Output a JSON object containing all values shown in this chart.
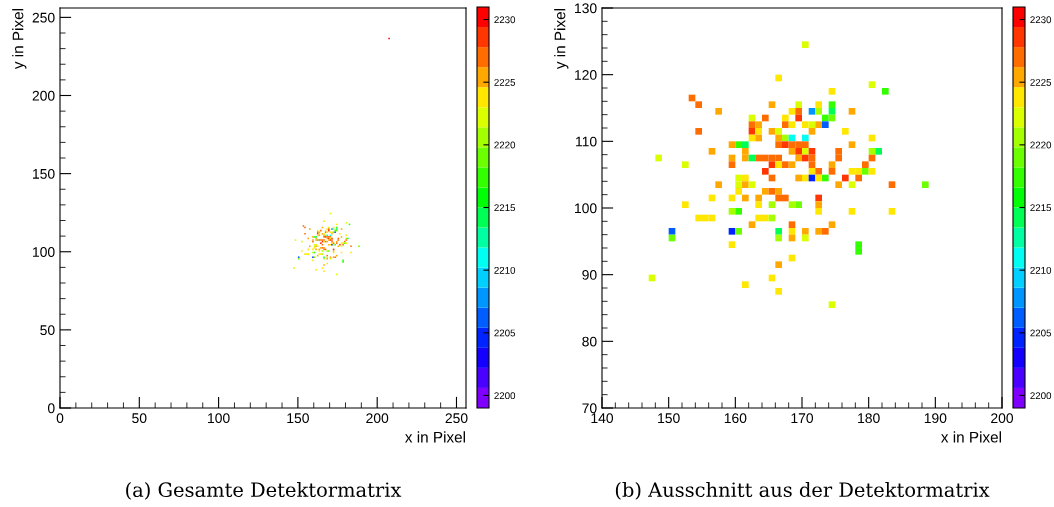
{
  "chart_data": [
    {
      "type": "scatter",
      "title": "(a) Gesamte Detektormatrix",
      "xlabel": "x in Pixel",
      "ylabel": "y in Pixel",
      "marker": "square",
      "grid": false,
      "xlim": [
        0,
        256
      ],
      "ylim": [
        0,
        256
      ],
      "xticks": [
        0,
        50,
        100,
        150,
        200,
        250
      ],
      "yticks": [
        0,
        50,
        100,
        150,
        200,
        250
      ],
      "clim": [
        2199,
        2231
      ],
      "cticks": [
        2200,
        2205,
        2210,
        2215,
        2220,
        2225,
        2230
      ],
      "x": [
        170.5,
        166.5,
        180.5,
        174.5,
        182.5,
        153.5,
        154.5,
        165.5,
        169.5,
        172.5,
        174.5,
        157.5,
        168.5,
        169.5,
        171.5,
        172.5,
        174.5,
        177.5,
        162.5,
        164.5,
        167.5,
        169.5,
        173.5,
        174.5,
        162.5,
        163.5,
        167.5,
        168.5,
        170.5,
        171.5,
        172.5,
        173.5,
        154.5,
        162.5,
        163.5,
        165.5,
        166.5,
        171.5,
        176.5,
        162.5,
        163.5,
        166.5,
        167.5,
        168.5,
        170.5,
        180.5,
        159.5,
        160.5,
        161.5,
        166.5,
        167.5,
        168.5,
        169.5,
        170.5,
        177.5,
        156.5,
        161.5,
        168.5,
        169.5,
        170.5,
        171.5,
        175.5,
        180.5,
        181.5,
        148.5,
        159.5,
        161.5,
        162.5,
        163.5,
        164.5,
        165.5,
        166.5,
        169.5,
        170.5,
        171.5,
        175.5,
        180.5,
        152.5,
        159.5,
        165.5,
        166.5,
        167.5,
        168.5,
        171.5,
        174.5,
        179.5,
        164.5,
        171.5,
        172.5,
        174.5,
        177.5,
        178.5,
        179.5,
        180.5,
        160.5,
        161.5,
        165.5,
        169.5,
        170.5,
        171.5,
        172.5,
        173.5,
        176.5,
        178.5,
        157.5,
        160.5,
        161.5,
        162.5,
        175.5,
        177.5,
        183.5,
        188.5,
        160.5,
        164.5,
        165.5,
        166.5,
        156.5,
        159.5,
        161.5,
        163.5,
        166.5,
        167.5,
        172.5,
        152.5,
        163.5,
        165.5,
        168.5,
        169.5,
        172.5,
        159.5,
        160.5,
        172.5,
        177.5,
        183.5,
        154.5,
        155.5,
        156.5,
        163.5,
        164.5,
        165.5,
        162.5,
        168.5,
        174.5,
        150.5,
        159.5,
        160.5,
        166.5,
        168.5,
        170.5,
        172.5,
        173.5,
        150.5,
        166.5,
        168.5,
        170.5,
        159.5,
        178.5,
        178.5,
        168.5,
        166.5,
        147.5,
        165.5,
        161.5,
        166.5,
        174.5,
        207.5
      ],
      "values": [
        124.5,
        119.5,
        118.5,
        117.5,
        117.5,
        116.5,
        115.5,
        115.5,
        115.5,
        115.5,
        115.5,
        114.5,
        114.5,
        114.5,
        114.5,
        114.5,
        114.5,
        114.5,
        113.5,
        113.5,
        113.5,
        113.5,
        113.5,
        113.5,
        112.5,
        112.5,
        112.5,
        112.5,
        112.5,
        112.5,
        112.5,
        112.5,
        111.5,
        111.5,
        111.5,
        111.5,
        111.5,
        111.5,
        111.5,
        110.5,
        110.5,
        110.5,
        110.5,
        110.5,
        110.5,
        110.5,
        109.5,
        109.5,
        109.5,
        109.5,
        109.5,
        109.5,
        109.5,
        109.5,
        109.5,
        108.5,
        108.5,
        108.5,
        108.5,
        108.5,
        108.5,
        108.5,
        108.5,
        108.5,
        107.5,
        107.5,
        107.5,
        107.5,
        107.5,
        107.5,
        107.5,
        107.5,
        107.5,
        107.5,
        107.5,
        107.5,
        107.5,
        106.5,
        106.5,
        106.5,
        106.5,
        106.5,
        106.5,
        106.5,
        106.5,
        106.5,
        105.5,
        105.5,
        105.5,
        105.5,
        105.5,
        105.5,
        105.5,
        105.5,
        104.5,
        104.5,
        104.5,
        104.5,
        104.5,
        104.5,
        104.5,
        104.5,
        104.5,
        104.5,
        103.5,
        103.5,
        103.5,
        103.5,
        103.5,
        103.5,
        103.5,
        103.5,
        102.5,
        102.5,
        102.5,
        102.5,
        101.5,
        101.5,
        101.5,
        101.5,
        101.5,
        101.5,
        101.5,
        100.5,
        100.5,
        100.5,
        100.5,
        100.5,
        100.5,
        99.5,
        99.5,
        99.5,
        99.5,
        99.5,
        98.5,
        98.5,
        98.5,
        98.5,
        98.5,
        98.5,
        97.5,
        97.5,
        97.5,
        96.5,
        96.5,
        96.5,
        96.5,
        96.5,
        96.5,
        96.5,
        96.5,
        95.5,
        95.5,
        95.5,
        95.5,
        94.5,
        94.5,
        93.5,
        92.5,
        91.5,
        89.5,
        89.5,
        88.5,
        87.5,
        85.5,
        236.5
      ],
      "cvalues": [
        2222.5,
        2224,
        2222.5,
        2224,
        2217,
        2227,
        2227,
        2225.5,
        2222.5,
        2224,
        2217,
        2225.5,
        2224,
        2227,
        2207,
        2221,
        2214,
        2225.5,
        2222.5,
        2227,
        2224,
        2228.5,
        2217,
        2219.5,
        2227,
        2225.5,
        2227,
        2224,
        2224,
        2222.5,
        2225.5,
        2206.5,
        2227,
        2228.5,
        2224,
        2225.5,
        2222.5,
        2225.5,
        2224,
        2224,
        2225.5,
        2225.5,
        2221,
        2211,
        2211,
        2224,
        2225.5,
        2217,
        2214,
        2227,
        2228.5,
        2227,
        2227,
        2227,
        2225.5,
        2225.5,
        2225.5,
        2225.5,
        2228.5,
        2222.5,
        2228.5,
        2227,
        2221,
        2214,
        2222.5,
        2225.5,
        2225.5,
        2214,
        2227,
        2227,
        2227,
        2227,
        2225.5,
        2228.5,
        2227,
        2227,
        2227,
        2222.5,
        2227,
        2228.5,
        2224,
        2227,
        2225.5,
        2227,
        2225.5,
        2227,
        2228.5,
        2224,
        2227,
        2227,
        2224,
        2224,
        2219.5,
        2224,
        2222.5,
        2224,
        2227,
        2225.5,
        2224,
        2204.5,
        2224,
        2217,
        2228.5,
        2227,
        2225.5,
        2222.5,
        2225.5,
        2222.5,
        2225.5,
        2222.5,
        2227,
        2219.5,
        2224,
        2225.5,
        2227,
        2225.5,
        2224,
        2224,
        2225.5,
        2225.5,
        2227,
        2227,
        2228.5,
        2224,
        2224,
        2221,
        2221,
        2219.5,
        2225.5,
        2221,
        2217,
        2224,
        2224,
        2224,
        2224,
        2224,
        2224,
        2224,
        2224,
        2221,
        2225.5,
        2227,
        2225.5,
        2206.5,
        2204.5,
        2219.5,
        2214,
        2224,
        2225.5,
        2225.5,
        2227,
        2219.5,
        2221,
        2225.5,
        2222.5,
        2224,
        2217,
        2217,
        2224,
        2225.5,
        2222.5,
        2224,
        2224,
        2224,
        2222.5,
        2230.5
      ]
    },
    {
      "type": "scatter",
      "title": "(b) Ausschnitt aus der Detektormatrix",
      "xlabel": "x in Pixel",
      "ylabel": "y in Pixel",
      "marker": "square",
      "grid": false,
      "xlim": [
        140,
        200
      ],
      "ylim": [
        70,
        130
      ],
      "xticks": [
        140,
        150,
        160,
        170,
        180,
        190,
        200
      ],
      "yticks": [
        70,
        80,
        90,
        100,
        110,
        120,
        130
      ],
      "clim": [
        2199,
        2231
      ],
      "cticks": [
        2200,
        2205,
        2210,
        2215,
        2220,
        2225,
        2230
      ],
      "x": [
        170.5,
        166.5,
        180.5,
        174.5,
        182.5,
        153.5,
        154.5,
        165.5,
        169.5,
        172.5,
        174.5,
        157.5,
        168.5,
        169.5,
        171.5,
        172.5,
        174.5,
        177.5,
        162.5,
        164.5,
        167.5,
        169.5,
        173.5,
        174.5,
        162.5,
        163.5,
        167.5,
        168.5,
        170.5,
        171.5,
        172.5,
        173.5,
        154.5,
        162.5,
        163.5,
        165.5,
        166.5,
        171.5,
        176.5,
        162.5,
        163.5,
        166.5,
        167.5,
        168.5,
        170.5,
        180.5,
        159.5,
        160.5,
        161.5,
        166.5,
        167.5,
        168.5,
        169.5,
        170.5,
        177.5,
        156.5,
        161.5,
        168.5,
        169.5,
        170.5,
        171.5,
        175.5,
        180.5,
        181.5,
        148.5,
        159.5,
        161.5,
        162.5,
        163.5,
        164.5,
        165.5,
        166.5,
        169.5,
        170.5,
        171.5,
        175.5,
        180.5,
        152.5,
        159.5,
        165.5,
        166.5,
        167.5,
        168.5,
        171.5,
        174.5,
        179.5,
        164.5,
        171.5,
        172.5,
        174.5,
        177.5,
        178.5,
        179.5,
        180.5,
        160.5,
        161.5,
        165.5,
        169.5,
        170.5,
        171.5,
        172.5,
        173.5,
        176.5,
        178.5,
        157.5,
        160.5,
        161.5,
        162.5,
        175.5,
        177.5,
        183.5,
        188.5,
        160.5,
        164.5,
        165.5,
        166.5,
        156.5,
        159.5,
        161.5,
        163.5,
        166.5,
        167.5,
        172.5,
        152.5,
        163.5,
        165.5,
        168.5,
        169.5,
        172.5,
        159.5,
        160.5,
        172.5,
        177.5,
        183.5,
        154.5,
        155.5,
        156.5,
        163.5,
        164.5,
        165.5,
        162.5,
        168.5,
        174.5,
        150.5,
        159.5,
        160.5,
        166.5,
        168.5,
        170.5,
        172.5,
        173.5,
        150.5,
        166.5,
        168.5,
        170.5,
        159.5,
        178.5,
        178.5,
        168.5,
        166.5,
        147.5,
        165.5,
        161.5,
        166.5,
        174.5
      ],
      "values": [
        124.5,
        119.5,
        118.5,
        117.5,
        117.5,
        116.5,
        115.5,
        115.5,
        115.5,
        115.5,
        115.5,
        114.5,
        114.5,
        114.5,
        114.5,
        114.5,
        114.5,
        114.5,
        113.5,
        113.5,
        113.5,
        113.5,
        113.5,
        113.5,
        112.5,
        112.5,
        112.5,
        112.5,
        112.5,
        112.5,
        112.5,
        112.5,
        111.5,
        111.5,
        111.5,
        111.5,
        111.5,
        111.5,
        111.5,
        110.5,
        110.5,
        110.5,
        110.5,
        110.5,
        110.5,
        110.5,
        109.5,
        109.5,
        109.5,
        109.5,
        109.5,
        109.5,
        109.5,
        109.5,
        109.5,
        108.5,
        108.5,
        108.5,
        108.5,
        108.5,
        108.5,
        108.5,
        108.5,
        108.5,
        107.5,
        107.5,
        107.5,
        107.5,
        107.5,
        107.5,
        107.5,
        107.5,
        107.5,
        107.5,
        107.5,
        107.5,
        107.5,
        106.5,
        106.5,
        106.5,
        106.5,
        106.5,
        106.5,
        106.5,
        106.5,
        106.5,
        105.5,
        105.5,
        105.5,
        105.5,
        105.5,
        105.5,
        105.5,
        105.5,
        104.5,
        104.5,
        104.5,
        104.5,
        104.5,
        104.5,
        104.5,
        104.5,
        104.5,
        104.5,
        103.5,
        103.5,
        103.5,
        103.5,
        103.5,
        103.5,
        103.5,
        103.5,
        102.5,
        102.5,
        102.5,
        102.5,
        101.5,
        101.5,
        101.5,
        101.5,
        101.5,
        101.5,
        101.5,
        100.5,
        100.5,
        100.5,
        100.5,
        100.5,
        100.5,
        99.5,
        99.5,
        99.5,
        99.5,
        99.5,
        98.5,
        98.5,
        98.5,
        98.5,
        98.5,
        98.5,
        97.5,
        97.5,
        97.5,
        96.5,
        96.5,
        96.5,
        96.5,
        96.5,
        96.5,
        96.5,
        96.5,
        95.5,
        95.5,
        95.5,
        95.5,
        94.5,
        94.5,
        93.5,
        92.5,
        91.5,
        89.5,
        89.5,
        88.5,
        87.5,
        85.5
      ],
      "cvalues": [
        2222.5,
        2224,
        2222.5,
        2224,
        2217,
        2227,
        2227,
        2225.5,
        2222.5,
        2224,
        2217,
        2225.5,
        2224,
        2227,
        2207,
        2221,
        2214,
        2225.5,
        2222.5,
        2227,
        2224,
        2228.5,
        2217,
        2219.5,
        2227,
        2225.5,
        2227,
        2224,
        2224,
        2222.5,
        2225.5,
        2206.5,
        2227,
        2228.5,
        2224,
        2225.5,
        2222.5,
        2225.5,
        2224,
        2224,
        2225.5,
        2225.5,
        2221,
        2211,
        2211,
        2224,
        2225.5,
        2217,
        2214,
        2227,
        2228.5,
        2227,
        2227,
        2227,
        2225.5,
        2225.5,
        2225.5,
        2225.5,
        2228.5,
        2222.5,
        2228.5,
        2227,
        2221,
        2214,
        2222.5,
        2225.5,
        2225.5,
        2214,
        2227,
        2227,
        2227,
        2227,
        2225.5,
        2228.5,
        2227,
        2227,
        2227,
        2222.5,
        2227,
        2228.5,
        2224,
        2227,
        2225.5,
        2227,
        2225.5,
        2227,
        2228.5,
        2224,
        2227,
        2227,
        2224,
        2224,
        2219.5,
        2224,
        2222.5,
        2224,
        2227,
        2225.5,
        2224,
        2204.5,
        2224,
        2217,
        2228.5,
        2227,
        2225.5,
        2222.5,
        2225.5,
        2222.5,
        2225.5,
        2222.5,
        2227,
        2219.5,
        2224,
        2225.5,
        2227,
        2225.5,
        2224,
        2224,
        2225.5,
        2225.5,
        2227,
        2227,
        2228.5,
        2224,
        2224,
        2221,
        2221,
        2219.5,
        2225.5,
        2221,
        2217,
        2224,
        2224,
        2224,
        2224,
        2224,
        2224,
        2224,
        2224,
        2221,
        2225.5,
        2227,
        2225.5,
        2206.5,
        2204.5,
        2219.5,
        2214,
        2224,
        2225.5,
        2225.5,
        2227,
        2219.5,
        2221,
        2225.5,
        2222.5,
        2224,
        2217,
        2217,
        2224,
        2225.5,
        2222.5,
        2224,
        2224,
        2224,
        2222.5
      ]
    }
  ]
}
